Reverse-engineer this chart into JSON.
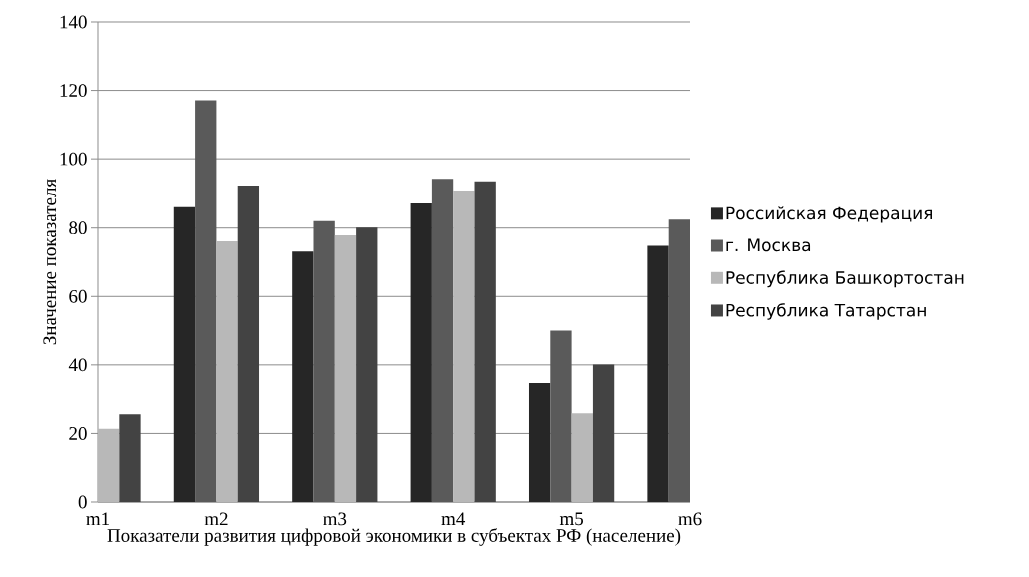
{
  "chart_data": {
    "type": "bar",
    "xlabel": "Показатели развития цифровой экономики в субъектах РФ (население)",
    "ylabel": "Значение показателя",
    "categories": [
      "m1",
      "m2",
      "m3",
      "m4",
      "m5",
      "m6"
    ],
    "series": [
      {
        "name": "Российская Федерация",
        "color": "#262626",
        "values": [
          null,
          86.1,
          73.1,
          87.2,
          34.7,
          74.8
        ]
      },
      {
        "name": "г. Москва",
        "color": "#5a5a5a",
        "values": [
          null,
          117.1,
          82.0,
          94.1,
          50.0,
          82.5
        ]
      },
      {
        "name": "Республика Башкортостан",
        "color": "#b8b8b8",
        "values": [
          21.4,
          76.1,
          77.9,
          90.7,
          25.9,
          null
        ]
      },
      {
        "name": "Республика Татарстан",
        "color": "#434343",
        "values": [
          25.6,
          92.2,
          80.1,
          93.4,
          40.1,
          null
        ]
      }
    ],
    "ylim": [
      0,
      140
    ],
    "yticks": [
      0,
      20,
      40,
      60,
      80,
      100,
      120,
      140
    ],
    "grid": "y",
    "legend": "right"
  }
}
